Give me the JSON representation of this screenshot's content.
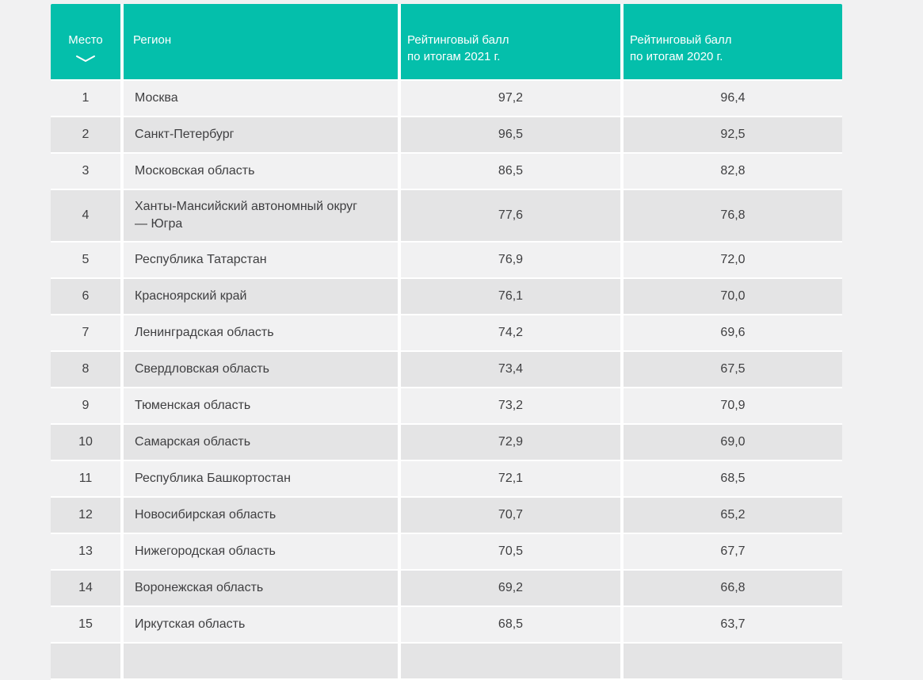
{
  "page": {
    "background": "#f1f1f2"
  },
  "table": {
    "header_background": "#04bfab",
    "header_text_color": "#ffffff",
    "body_text_color": "#3f3f41",
    "row_color_light": "#f1f1f2",
    "row_color_dark": "#e4e4e5",
    "separator_color": "#ffffff",
    "columns": [
      {
        "id": "place",
        "label": "Место",
        "sortable": true,
        "sort_icon": "chevron-down-icon"
      },
      {
        "id": "region",
        "label": "Регион"
      },
      {
        "id": "score_2021",
        "label": "Рейтинговый балл\nпо итогам 2021 г."
      },
      {
        "id": "score_2020",
        "label": "Рейтинговый балл\nпо итогам 2020 г."
      }
    ],
    "rows": [
      {
        "place": "1",
        "region": "Москва",
        "score_2021": "97,2",
        "score_2020": "96,4"
      },
      {
        "place": "2",
        "region": "Санкт-Петербург",
        "score_2021": "96,5",
        "score_2020": "92,5"
      },
      {
        "place": "3",
        "region": "Московская область",
        "score_2021": "86,5",
        "score_2020": "82,8"
      },
      {
        "place": "4",
        "region": "Ханты-Мансийский автономный округ — Югра",
        "score_2021": "77,6",
        "score_2020": "76,8"
      },
      {
        "place": "5",
        "region": "Республика Татарстан",
        "score_2021": "76,9",
        "score_2020": "72,0"
      },
      {
        "place": "6",
        "region": "Красноярский край",
        "score_2021": "76,1",
        "score_2020": "70,0"
      },
      {
        "place": "7",
        "region": "Ленинградская область",
        "score_2021": "74,2",
        "score_2020": "69,6"
      },
      {
        "place": "8",
        "region": "Свердловская область",
        "score_2021": "73,4",
        "score_2020": "67,5"
      },
      {
        "place": "9",
        "region": "Тюменская область",
        "score_2021": "73,2",
        "score_2020": "70,9"
      },
      {
        "place": "10",
        "region": "Самарская область",
        "score_2021": "72,9",
        "score_2020": "69,0"
      },
      {
        "place": "11",
        "region": "Республика Башкортостан",
        "score_2021": "72,1",
        "score_2020": "68,5"
      },
      {
        "place": "12",
        "region": "Новосибирская область",
        "score_2021": "70,7",
        "score_2020": "65,2"
      },
      {
        "place": "13",
        "region": "Нижегородская область",
        "score_2021": "70,5",
        "score_2020": "67,7"
      },
      {
        "place": "14",
        "region": "Воронежская область",
        "score_2021": "69,2",
        "score_2020": "66,8"
      },
      {
        "place": "15",
        "region": "Иркутская область",
        "score_2021": "68,5",
        "score_2020": "63,7"
      }
    ],
    "partial_next_row_visible": true
  }
}
